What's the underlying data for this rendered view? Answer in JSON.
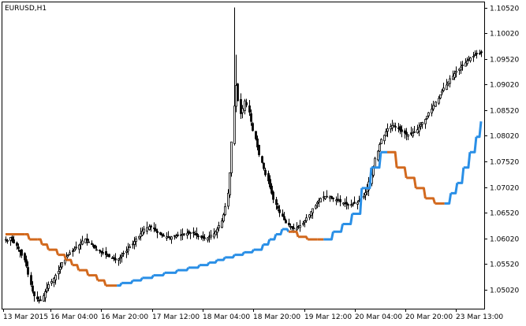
{
  "chart_data": {
    "type": "candlestick",
    "symbol_label": "EURUSD,H1",
    "y_ticks": [
      "1.10520",
      "1.10020",
      "1.09520",
      "1.09020",
      "1.08520",
      "1.08020",
      "1.07520",
      "1.07020",
      "1.06520",
      "1.06020",
      "1.05520",
      "1.05020"
    ],
    "x_ticks": [
      "13 Mar 2015",
      "16 Mar 04:00",
      "16 Mar 20:00",
      "17 Mar 12:00",
      "18 Mar 04:00",
      "18 Mar 20:00",
      "19 Mar 12:00",
      "20 Mar 04:00",
      "20 Mar 20:00",
      "23 Mar 13:00"
    ],
    "ylim": [
      1.0465,
      1.1062
    ],
    "bar_count": 300,
    "colors": {
      "up_line": "#2a8fe6",
      "down_line": "#d2691e",
      "candle": "#000000",
      "axis": "#000000"
    },
    "candles_close_path": [
      1.06,
      1.0598,
      1.0604,
      1.0597,
      1.0593,
      1.0588,
      1.0582,
      1.0576,
      1.0569,
      1.056,
      1.0548,
      1.0532,
      1.0512,
      1.0499,
      1.049,
      1.0484,
      1.048,
      1.0482,
      1.049,
      1.0498,
      1.0505,
      1.0512,
      1.0518,
      1.0524,
      1.053,
      1.0538,
      1.0546,
      1.0555,
      1.056,
      1.0566,
      1.057,
      1.0574,
      1.0577,
      1.0581,
      1.0585,
      1.0589,
      1.0593,
      1.0597,
      1.0601,
      1.0598,
      1.0594,
      1.059,
      1.0586,
      1.0583,
      1.058,
      1.0578,
      1.0575,
      1.0573,
      1.057,
      1.0568,
      1.0566,
      1.0564,
      1.0562,
      1.056,
      1.0562,
      1.0565,
      1.0569,
      1.0573,
      1.0577,
      1.0581,
      1.0586,
      1.0591,
      1.0596,
      1.0601,
      1.0606,
      1.0611,
      1.0616,
      1.062,
      1.0623,
      1.0625,
      1.0624,
      1.0621,
      1.0617,
      1.0613,
      1.061,
      1.0608,
      1.0606,
      1.0605,
      1.0604,
      1.0604,
      1.0605,
      1.0606,
      1.0607,
      1.0608,
      1.0609,
      1.061,
      1.0611,
      1.0612,
      1.0613,
      1.0613,
      1.0612,
      1.061,
      1.0608,
      1.0606,
      1.0604,
      1.0603,
      1.0602,
      1.0603,
      1.0605,
      1.0608,
      1.0611,
      1.0615,
      1.062,
      1.0627,
      1.0636,
      1.0648,
      1.0664,
      1.069,
      1.073,
      1.079,
      1.086,
      1.09,
      1.087,
      1.0845,
      1.0855,
      1.087,
      1.0862,
      1.0848,
      1.083,
      1.0812,
      1.0796,
      1.078,
      1.0765,
      1.075,
      1.0738,
      1.0726,
      1.0714,
      1.0702,
      1.069,
      1.0678,
      1.0668,
      1.066,
      1.0652,
      1.0645,
      1.0638,
      1.0632,
      1.0628,
      1.0625,
      1.0623,
      1.0622,
      1.0622,
      1.0624,
      1.0627,
      1.0631,
      1.0636,
      1.0642,
      1.0648,
      1.0654,
      1.066,
      1.0666,
      1.0672,
      1.0676,
      1.068,
      1.0683,
      1.0684,
      1.0684,
      1.0683,
      1.0681,
      1.0679,
      1.0677,
      1.0675,
      1.0673,
      1.0671,
      1.067,
      1.0669,
      1.0668,
      1.0668,
      1.0669,
      1.067,
      1.0672,
      1.0675,
      1.0679,
      1.0684,
      1.0691,
      1.07,
      1.0712,
      1.0726,
      1.0742,
      1.0758,
      1.0772,
      1.0785,
      1.0795,
      1.0803,
      1.081,
      1.0816,
      1.082,
      1.0822,
      1.0822,
      1.082,
      1.0817,
      1.0813,
      1.081,
      1.0807,
      1.0805,
      1.0804,
      1.0805,
      1.0807,
      1.081,
      1.0814,
      1.0818,
      1.0823,
      1.0828,
      1.0834,
      1.084,
      1.0847,
      1.0854,
      1.0861,
      1.0868,
      1.0875,
      1.0882,
      1.0889,
      1.0895,
      1.0901,
      1.0907,
      1.0913,
      1.0918,
      1.0923,
      1.0928,
      1.0932,
      1.0936,
      1.094,
      1.0944,
      1.0948,
      1.0951,
      1.0954,
      1.0957,
      1.096,
      1.0962,
      1.0963,
      1.0964
    ],
    "ma_line": [
      [
        0,
        1.061,
        "down"
      ],
      [
        12,
        1.061,
        "down"
      ],
      [
        15,
        1.06,
        "down"
      ],
      [
        20,
        1.06,
        "down"
      ],
      [
        23,
        1.059,
        "down"
      ],
      [
        27,
        1.058,
        "down"
      ],
      [
        33,
        1.057,
        "down"
      ],
      [
        38,
        1.056,
        "down"
      ],
      [
        42,
        1.055,
        "down"
      ],
      [
        46,
        1.054,
        "down"
      ],
      [
        52,
        1.053,
        "down"
      ],
      [
        58,
        1.052,
        "down"
      ],
      [
        63,
        1.051,
        "down"
      ],
      [
        70,
        1.051,
        "up"
      ],
      [
        73,
        1.0515,
        "up"
      ],
      [
        80,
        1.052,
        "up"
      ],
      [
        86,
        1.0525,
        "up"
      ],
      [
        93,
        1.053,
        "up"
      ],
      [
        100,
        1.0535,
        "up"
      ],
      [
        108,
        1.054,
        "up"
      ],
      [
        115,
        1.0545,
        "up"
      ],
      [
        122,
        1.055,
        "up"
      ],
      [
        128,
        1.0555,
        "up"
      ],
      [
        133,
        1.056,
        "up"
      ],
      [
        138,
        1.0565,
        "up"
      ],
      [
        144,
        1.057,
        "up"
      ],
      [
        150,
        1.0575,
        "up"
      ],
      [
        156,
        1.058,
        "up"
      ],
      [
        162,
        1.059,
        "up"
      ],
      [
        166,
        1.06,
        "up"
      ],
      [
        170,
        1.061,
        "up"
      ],
      [
        174,
        1.062,
        "up"
      ],
      [
        178,
        1.0615,
        "down"
      ],
      [
        184,
        1.0605,
        "down"
      ],
      [
        190,
        1.06,
        "down"
      ],
      [
        196,
        1.06,
        "down"
      ],
      [
        200,
        1.06,
        "up"
      ],
      [
        206,
        1.0615,
        "up"
      ],
      [
        212,
        1.063,
        "up"
      ],
      [
        218,
        1.065,
        "up"
      ],
      [
        224,
        1.07,
        "up"
      ],
      [
        230,
        1.074,
        "up"
      ],
      [
        236,
        1.077,
        "up"
      ],
      [
        240,
        1.077,
        "down"
      ],
      [
        246,
        1.074,
        "down"
      ],
      [
        252,
        1.072,
        "down"
      ],
      [
        258,
        1.07,
        "down"
      ],
      [
        264,
        1.068,
        "down"
      ],
      [
        270,
        1.067,
        "down"
      ],
      [
        276,
        1.067,
        "up"
      ],
      [
        280,
        1.069,
        "up"
      ],
      [
        284,
        1.071,
        "up"
      ],
      [
        288,
        1.074,
        "up"
      ],
      [
        292,
        1.077,
        "up"
      ],
      [
        296,
        1.08,
        "up"
      ],
      [
        299,
        1.083,
        "up"
      ]
    ]
  }
}
